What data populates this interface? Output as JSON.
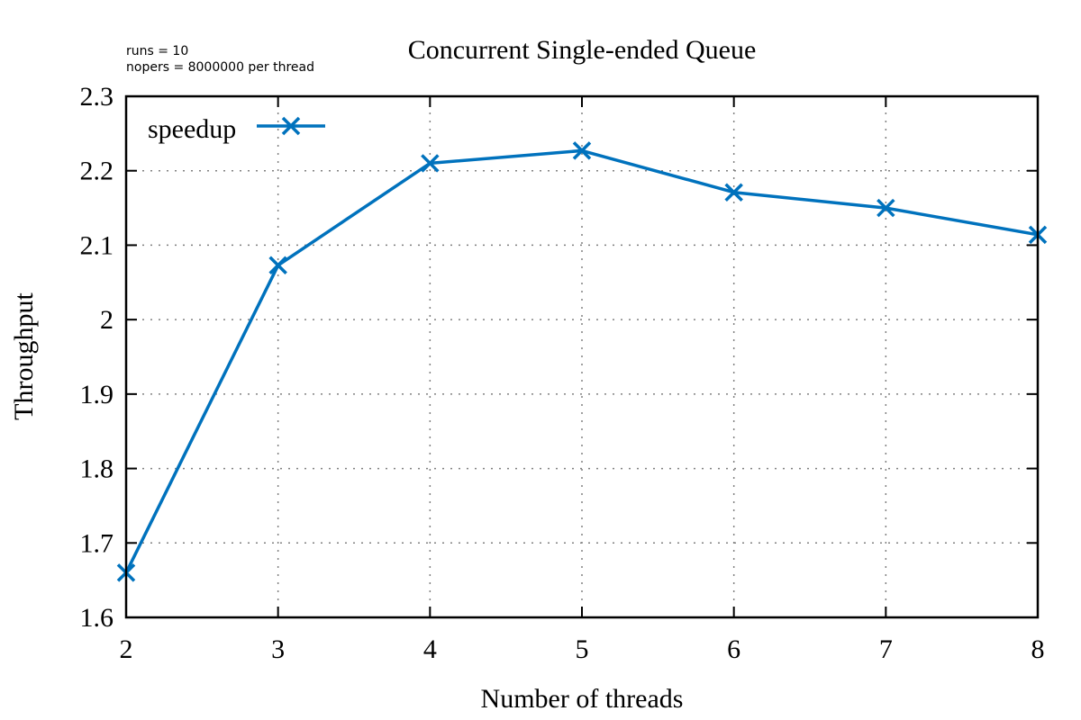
{
  "chart_data": {
    "type": "line",
    "title": "Concurrent Single-ended Queue",
    "annotations": [
      "runs = 10",
      "nopers = 8000000 per thread"
    ],
    "xlabel": "Number of threads",
    "ylabel": "Throughput",
    "xlim": [
      2,
      8
    ],
    "ylim": [
      1.6,
      2.3
    ],
    "xticks": [
      "2",
      "3",
      "4",
      "5",
      "6",
      "7",
      "8"
    ],
    "yticks": [
      "1.6",
      "1.7",
      "1.8",
      "1.9",
      "2",
      "2.1",
      "2.2",
      "2.3"
    ],
    "grid": true,
    "legend_position": "top-left",
    "series": [
      {
        "name": "speedup",
        "color": "#0072bd",
        "marker": "x",
        "x": [
          2,
          3,
          4,
          5,
          6,
          7,
          8
        ],
        "y": [
          1.66,
          2.073,
          2.21,
          2.227,
          2.171,
          2.15,
          2.114
        ]
      }
    ]
  }
}
